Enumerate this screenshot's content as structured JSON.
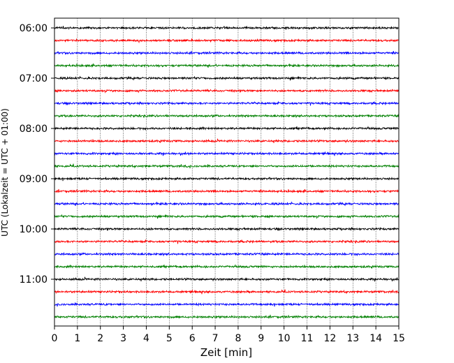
{
  "chart_data": {
    "type": "line",
    "title": "",
    "xlabel": "Zeit  [min]",
    "ylabel": "UTC (Lokalzeit = UTC + 01:00)",
    "xlim": [
      0,
      15
    ],
    "x_ticks": [
      "0",
      "1",
      "2",
      "3",
      "4",
      "5",
      "6",
      "7",
      "8",
      "9",
      "10",
      "11",
      "12",
      "13",
      "14",
      "15"
    ],
    "y_tick_labels": [
      "06:00",
      "07:00",
      "08:00",
      "09:00",
      "10:00",
      "11:00"
    ],
    "grid": "vertical dotted lines at each minute",
    "legend": "none",
    "series_colors": [
      "#000000",
      "#ff0000",
      "#0000ff",
      "#008000"
    ],
    "traces": [
      {
        "start": "06:00",
        "color": "#000000"
      },
      {
        "start": "06:15",
        "color": "#ff0000"
      },
      {
        "start": "06:30",
        "color": "#0000ff"
      },
      {
        "start": "06:45",
        "color": "#008000"
      },
      {
        "start": "07:00",
        "color": "#000000"
      },
      {
        "start": "07:15",
        "color": "#ff0000"
      },
      {
        "start": "07:30",
        "color": "#0000ff"
      },
      {
        "start": "07:45",
        "color": "#008000"
      },
      {
        "start": "08:00",
        "color": "#000000"
      },
      {
        "start": "08:15",
        "color": "#ff0000"
      },
      {
        "start": "08:30",
        "color": "#0000ff"
      },
      {
        "start": "08:45",
        "color": "#008000"
      },
      {
        "start": "09:00",
        "color": "#000000"
      },
      {
        "start": "09:15",
        "color": "#ff0000"
      },
      {
        "start": "09:30",
        "color": "#0000ff"
      },
      {
        "start": "09:45",
        "color": "#008000"
      },
      {
        "start": "10:00",
        "color": "#000000"
      },
      {
        "start": "10:15",
        "color": "#ff0000"
      },
      {
        "start": "10:30",
        "color": "#0000ff"
      },
      {
        "start": "10:45",
        "color": "#008000"
      },
      {
        "start": "11:00",
        "color": "#000000"
      },
      {
        "start": "11:15",
        "color": "#ff0000"
      },
      {
        "start": "11:30",
        "color": "#0000ff"
      },
      {
        "start": "11:45",
        "color": "#008000"
      }
    ]
  }
}
